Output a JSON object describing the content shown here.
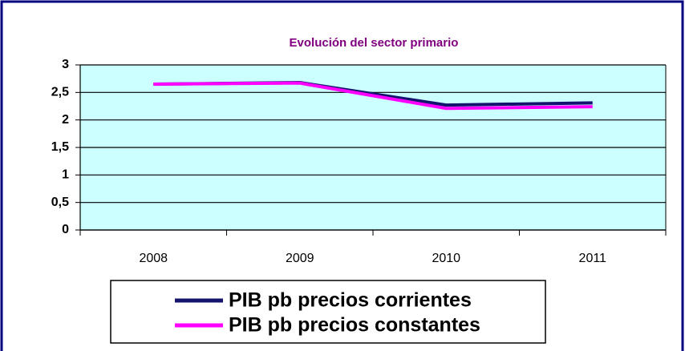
{
  "chart_data": {
    "type": "line",
    "title": "Evolución del sector primario",
    "categories": [
      "2008",
      "2009",
      "2010",
      "2011"
    ],
    "series": [
      {
        "name": "PIB pb precios corrientes",
        "color": "#14146e",
        "values": [
          2.65,
          2.68,
          2.27,
          2.31
        ]
      },
      {
        "name": "PIB pb precios constantes",
        "color": "#ff00ff",
        "values": [
          2.65,
          2.67,
          2.21,
          2.24
        ]
      }
    ],
    "ylim": [
      0,
      3
    ],
    "yticks": [
      0,
      {
        "value": 0.5,
        "label": "0,5"
      },
      1,
      {
        "value": 1.5,
        "label": "1,5"
      },
      2,
      {
        "value": 2.5,
        "label": "2,5"
      },
      3
    ],
    "grid": true
  }
}
